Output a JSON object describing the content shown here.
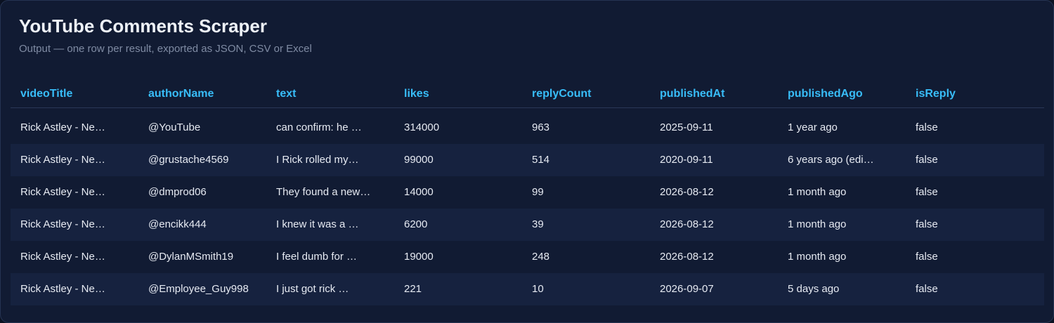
{
  "header": {
    "title": "YouTube Comments Scraper",
    "subtitle": "Output — one row per result, exported as JSON, CSV or Excel"
  },
  "table": {
    "columns": [
      "videoTitle",
      "authorName",
      "text",
      "likes",
      "replyCount",
      "publishedAt",
      "publishedAgo",
      "isReply"
    ],
    "rows": [
      [
        "Rick Astley - Ne…",
        "@YouTube",
        "can confirm: he …",
        314000,
        963,
        "2025-09-11",
        "1 year ago",
        "false"
      ],
      [
        "Rick Astley - Ne…",
        "@grustache4569",
        "I Rick rolled my…",
        99000,
        514,
        "2020-09-11",
        "6 years ago (edi…",
        "false"
      ],
      [
        "Rick Astley - Ne…",
        "@dmprod06",
        "They found a new…",
        14000,
        99,
        "2026-08-12",
        "1 month ago",
        "false"
      ],
      [
        "Rick Astley - Ne…",
        "@encikk444",
        "I knew it was a …",
        6200,
        39,
        "2026-08-12",
        "1 month ago",
        "false"
      ],
      [
        "Rick Astley - Ne…",
        "@DylanMSmith19",
        "I feel dumb for …",
        19000,
        248,
        "2026-08-12",
        "1 month ago",
        "false"
      ],
      [
        "Rick Astley - Ne…",
        "@Employee_Guy998",
        "I just got rick …",
        221,
        10,
        "2026-09-07",
        "5 days ago",
        "false"
      ]
    ]
  }
}
